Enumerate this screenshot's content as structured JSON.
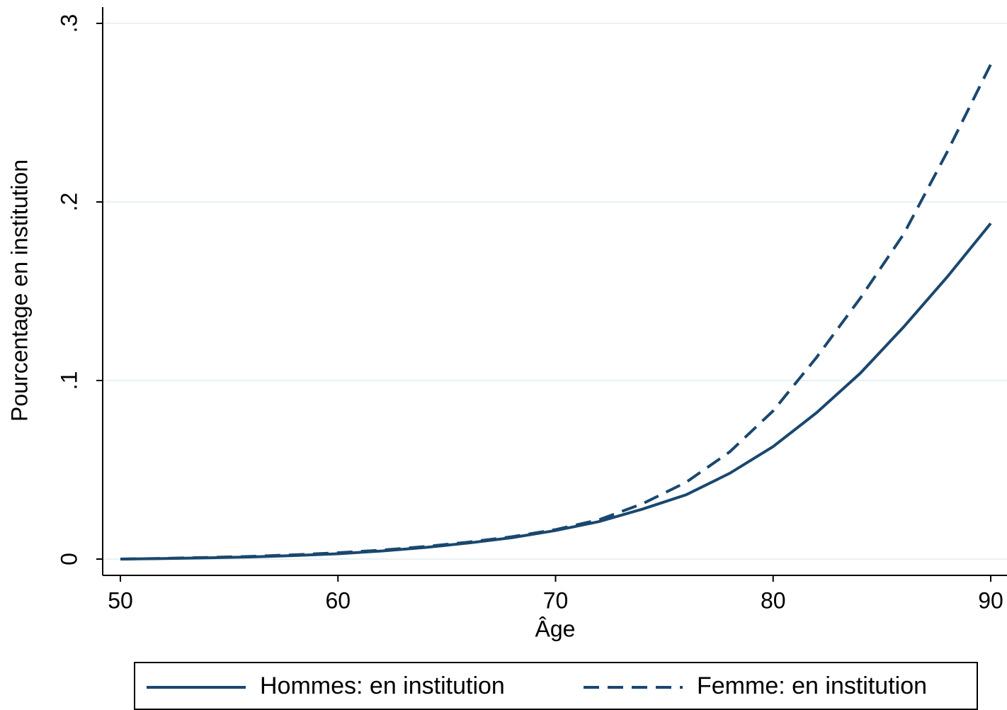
{
  "chart_data": {
    "type": "line",
    "x_label": "Âge",
    "y_label": "Pourcentage en institution",
    "x": [
      50,
      52,
      54,
      56,
      58,
      60,
      62,
      64,
      66,
      68,
      70,
      72,
      74,
      76,
      78,
      80,
      82,
      84,
      86,
      88,
      90
    ],
    "series": [
      {
        "name": "Hommes: en institution",
        "color": "#1a476f",
        "line_style": "solid",
        "values": [
          0,
          0.0003,
          0.0007,
          0.0012,
          0.002,
          0.003,
          0.0045,
          0.0065,
          0.009,
          0.012,
          0.016,
          0.021,
          0.028,
          0.036,
          0.048,
          0.063,
          0.082,
          0.104,
          0.13,
          0.158,
          0.188
        ]
      },
      {
        "name": "Femme: en institution",
        "color": "#1a476f",
        "line_style": "dashed",
        "values": [
          0,
          0.0004,
          0.0009,
          0.0015,
          0.0024,
          0.0035,
          0.005,
          0.007,
          0.0095,
          0.0125,
          0.0165,
          0.022,
          0.031,
          0.043,
          0.06,
          0.083,
          0.113,
          0.146,
          0.182,
          0.228,
          0.277
        ]
      }
    ],
    "xlim": [
      50,
      90
    ],
    "xticks": [
      50,
      60,
      70,
      80,
      90
    ],
    "ylim": [
      0,
      0.3
    ],
    "yticks": [
      0,
      {
        "value": 0.1,
        "label": ".1"
      },
      {
        "value": 0.2,
        "label": ".2"
      },
      {
        "value": 0.3,
        "label": ".3"
      }
    ],
    "grid": true,
    "legend": "bottom"
  }
}
